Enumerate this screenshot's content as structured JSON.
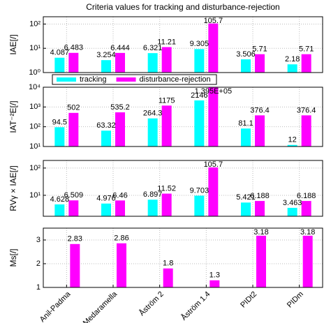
{
  "title": "Criteria values for tracking and disturbance-rejection",
  "chart_data": [
    {
      "type": "bar",
      "ylabel": "IAE[/]",
      "log": true,
      "grid": true,
      "legend": "bottom",
      "ylim": [
        1,
        200
      ],
      "yticks": [
        {
          "value": 1,
          "label": "10⁰"
        },
        {
          "value": 10,
          "label": "10¹"
        },
        {
          "value": 100,
          "label": "10²"
        }
      ],
      "series": [
        {
          "name": "tracking",
          "color": "#00ffff",
          "values": [
            4.087,
            3.254,
            6.321,
            9.305,
            3.506,
            2.18
          ]
        },
        {
          "name": "disturbance-rejection",
          "color": "#ff00ff",
          "values": [
            6.483,
            6.444,
            11.21,
            105.7,
            5.71,
            5.71
          ]
        }
      ]
    },
    {
      "type": "bar",
      "ylabel": "IAT⁻²E[/]",
      "log": true,
      "grid": true,
      "ylim": [
        10,
        10000
      ],
      "yticks": [
        {
          "value": 10,
          "label": "10¹"
        },
        {
          "value": 100,
          "label": "10²"
        },
        {
          "value": 1000,
          "label": "10³"
        },
        {
          "value": 10000,
          "label": "10⁴"
        }
      ],
      "series": [
        {
          "color": "#00ffff",
          "values": [
            94.5,
            63.32,
            264.3,
            2146,
            81.1,
            12
          ]
        },
        {
          "color": "#ff00ff",
          "values": [
            502,
            535.2,
            1175,
            139500,
            376.4,
            376.4
          ],
          "value_labels": [
            "502",
            "535.2",
            "1175",
            "1.395E+05",
            "376.4",
            "376.4"
          ]
        }
      ]
    },
    {
      "type": "bar",
      "ylabel": "RVγ × IAE[/]",
      "log": true,
      "grid": true,
      "ylim": [
        1.7,
        190
      ],
      "yticks": [
        {
          "value": 10,
          "label": "10¹"
        },
        {
          "value": 100,
          "label": "10²"
        }
      ],
      "series": [
        {
          "color": "#00ffff",
          "values": [
            4.628,
            4.976,
            6.897,
            9.703,
            5.421,
            3.463
          ]
        },
        {
          "color": "#ff00ff",
          "values": [
            6.509,
            6.46,
            11.52,
            105.7,
            6.188,
            6.188
          ]
        }
      ]
    },
    {
      "type": "bar",
      "ylabel": "Ms[/]",
      "log": false,
      "grid": true,
      "ylim": [
        1,
        3.5
      ],
      "yticks": [
        1,
        2,
        3
      ],
      "categories": [
        "Anil-Padma",
        "Medaramella",
        "Åström 2",
        "Åström 1.4",
        "PIDt2",
        "PIDm"
      ],
      "series": [
        {
          "color": "#ff00ff",
          "values": [
            2.83,
            2.86,
            1.8,
            1.3,
            3.18,
            3.18
          ]
        }
      ]
    }
  ]
}
